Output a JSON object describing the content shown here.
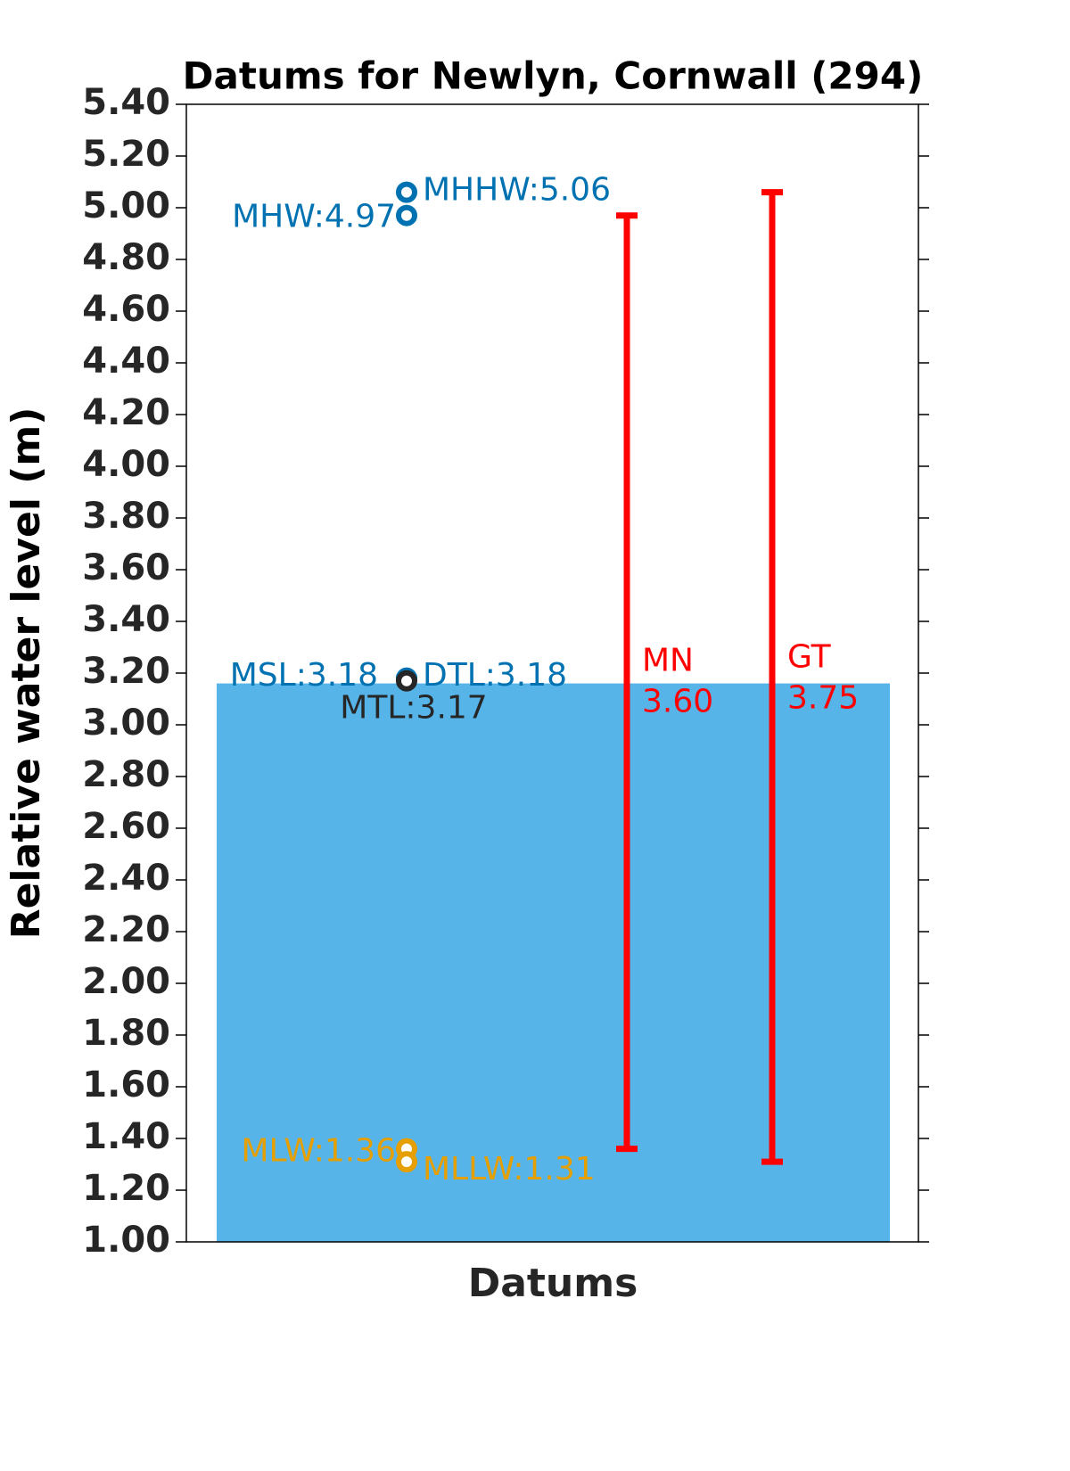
{
  "chart_data": {
    "type": "datum",
    "title": "Datums for Newlyn, Cornwall (294)",
    "ylabel": "Relative water level (m)",
    "xlabel": "Datums",
    "ylim": [
      1.0,
      5.4
    ],
    "yticks": [
      {
        "value": 1.0,
        "label": "1.00"
      },
      {
        "value": 1.2,
        "label": "1.20"
      },
      {
        "value": 1.4,
        "label": "1.40"
      },
      {
        "value": 1.6,
        "label": "1.60"
      },
      {
        "value": 1.8,
        "label": "1.80"
      },
      {
        "value": 2.0,
        "label": "2.00"
      },
      {
        "value": 2.2,
        "label": "2.20"
      },
      {
        "value": 2.4,
        "label": "2.40"
      },
      {
        "value": 2.6,
        "label": "2.60"
      },
      {
        "value": 2.8,
        "label": "2.80"
      },
      {
        "value": 3.0,
        "label": "3.00"
      },
      {
        "value": 3.2,
        "label": "3.20"
      },
      {
        "value": 3.4,
        "label": "3.40"
      },
      {
        "value": 3.6,
        "label": "3.60"
      },
      {
        "value": 3.8,
        "label": "3.80"
      },
      {
        "value": 4.0,
        "label": "4.00"
      },
      {
        "value": 4.2,
        "label": "4.20"
      },
      {
        "value": 4.4,
        "label": "4.40"
      },
      {
        "value": 4.6,
        "label": "4.60"
      },
      {
        "value": 4.8,
        "label": "4.80"
      },
      {
        "value": 5.0,
        "label": "5.00"
      },
      {
        "value": 5.2,
        "label": "5.20"
      },
      {
        "value": 5.4,
        "label": "5.40"
      }
    ],
    "bar": {
      "value": 3.16,
      "color": "#56b4e9"
    },
    "points": {
      "values": [
        5.06,
        4.97,
        3.18,
        3.18,
        3.17,
        1.36,
        1.31
      ],
      "value_labels": [
        "MHHW:5.06",
        "MHW:4.97",
        "MSL:3.18",
        "DTL:3.18",
        "MTL:3.17",
        "MLW:1.36",
        "MLLW:1.31"
      ],
      "colors": [
        "#0072b2",
        "#0072b2",
        "#0072b2",
        "#0072b2",
        "#262626",
        "#e69f00",
        "#e69f00"
      ]
    },
    "ranges": [
      {
        "name": "MN",
        "low": 1.36,
        "high": 4.97,
        "value": 3.6,
        "value_label": "3.60",
        "color": "#ff0000"
      },
      {
        "name": "GT",
        "low": 1.31,
        "high": 5.06,
        "value": 3.75,
        "value_label": "3.75",
        "color": "#ff0000"
      }
    ]
  }
}
